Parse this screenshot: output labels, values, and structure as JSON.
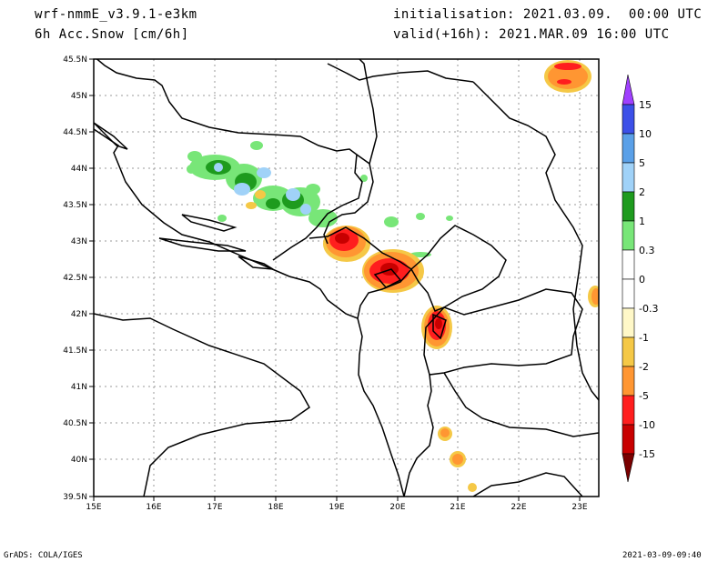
{
  "header": {
    "model": "wrf-nmmE_v3.9.1-e3km",
    "field": "6h Acc.Snow [cm/6h]",
    "init": "initialisation: 2021.03.09.  00:00 UTC",
    "valid": "valid(+16h): 2021.MAR.09 16:00 UTC"
  },
  "axes": {
    "lat_labels": [
      "45.5N",
      "45N",
      "44.5N",
      "44N",
      "43.5N",
      "43N",
      "42.5N",
      "42N",
      "41.5N",
      "41N",
      "40.5N",
      "40N",
      "39.5N"
    ],
    "lon_labels": [
      "15E",
      "16E",
      "17E",
      "18E",
      "19E",
      "20E",
      "21E",
      "22E",
      "23E"
    ]
  },
  "colorbar": {
    "labels": [
      "15",
      "10",
      "5",
      "2",
      "1",
      "0.3",
      "0",
      "-0.3",
      "-1",
      "-2",
      "-5",
      "-10",
      "-15"
    ],
    "colors": [
      "#a040ff",
      "#3c50e8",
      "#5aa0e8",
      "#a0d2f8",
      "#1e9b1e",
      "#78e678",
      "#ffffff",
      "#ffffff",
      "#fff8c8",
      "#f5c846",
      "#ff9632",
      "#ff1e1e",
      "#c80000",
      "#7a0000"
    ]
  },
  "footer": {
    "left": "GrADS: COLA/IGES",
    "right": "2021-03-09-09:40"
  }
}
